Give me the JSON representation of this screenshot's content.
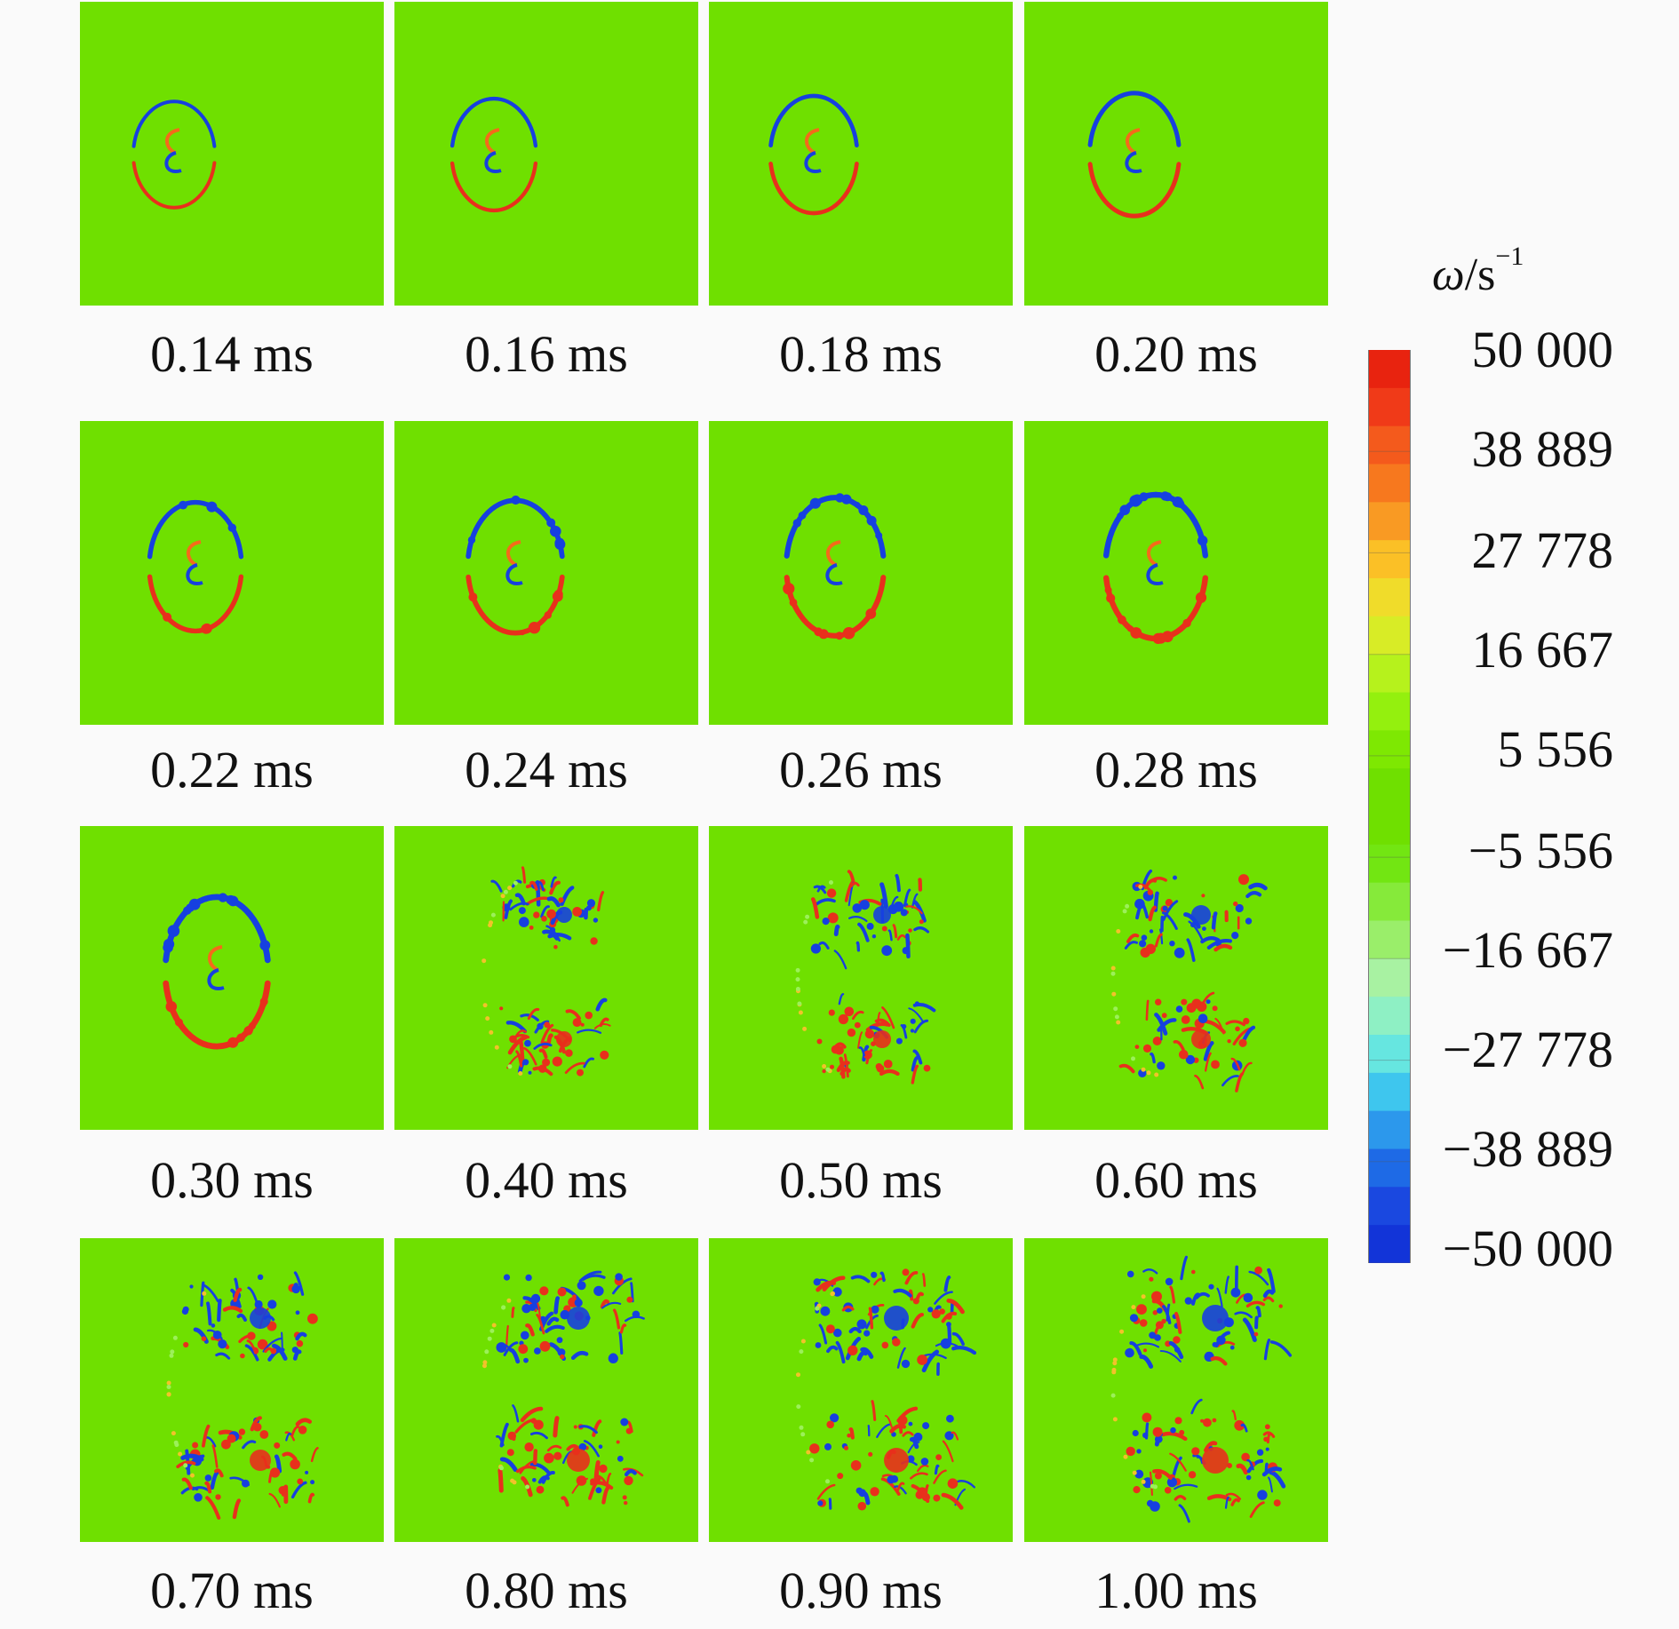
{
  "panels": [
    {
      "time_label": "0.14 ms"
    },
    {
      "time_label": "0.16 ms"
    },
    {
      "time_label": "0.18 ms"
    },
    {
      "time_label": "0.20 ms"
    },
    {
      "time_label": "0.22 ms"
    },
    {
      "time_label": "0.24 ms"
    },
    {
      "time_label": "0.26 ms"
    },
    {
      "time_label": "0.28 ms"
    },
    {
      "time_label": "0.30 ms"
    },
    {
      "time_label": "0.40 ms"
    },
    {
      "time_label": "0.50 ms"
    },
    {
      "time_label": "0.60 ms"
    },
    {
      "time_label": "0.70 ms"
    },
    {
      "time_label": "0.80 ms"
    },
    {
      "time_label": "0.90 ms"
    },
    {
      "time_label": "1.00 ms"
    }
  ],
  "colorbar": {
    "title_symbol": "ω",
    "title_unit": "/s",
    "title_exponent": "−1",
    "tick_labels": [
      "50 000",
      "38 889",
      "27 778",
      "16 667",
      "5 556",
      "−5 556",
      "−16 667",
      "−27 778",
      "−38 889",
      "−50 000"
    ],
    "range": [
      -50000,
      50000
    ],
    "colors": {
      "background": "#6fe000",
      "max": "#e8301c",
      "min": "#1640e0"
    }
  }
}
